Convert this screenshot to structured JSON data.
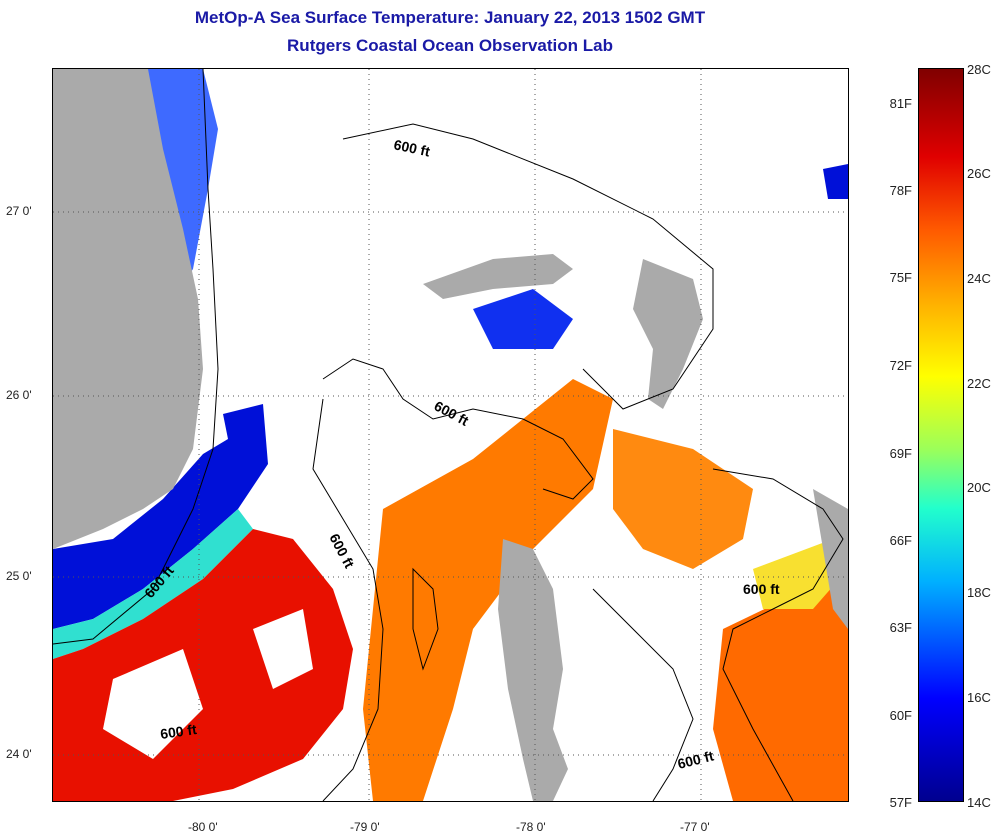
{
  "title_line1": "MetOp-A Sea Surface Temperature:  January 22, 2013 1502 GMT",
  "title_line2": "Rutgers Coastal Ocean Observation Lab",
  "y_ticks": [
    "27 0'",
    "26 0'",
    "25 0'",
    "24 0'"
  ],
  "x_ticks": [
    "-80 0'",
    "-79 0'",
    "-78 0'",
    "-77 0'"
  ],
  "contour_label": "600 ft",
  "colorbar": {
    "fahrenheit": [
      "81F",
      "78F",
      "75F",
      "72F",
      "69F",
      "66F",
      "63F",
      "60F",
      "57F"
    ],
    "celsius": [
      "28C",
      "26C",
      "24C",
      "22C",
      "20C",
      "18C",
      "16C",
      "14C"
    ]
  },
  "colors": {
    "land": "#aaaaaa",
    "title": "#1a1aa6",
    "cold": "#0000d0",
    "warm": "#ff7a00",
    "hot": "#e00000"
  }
}
